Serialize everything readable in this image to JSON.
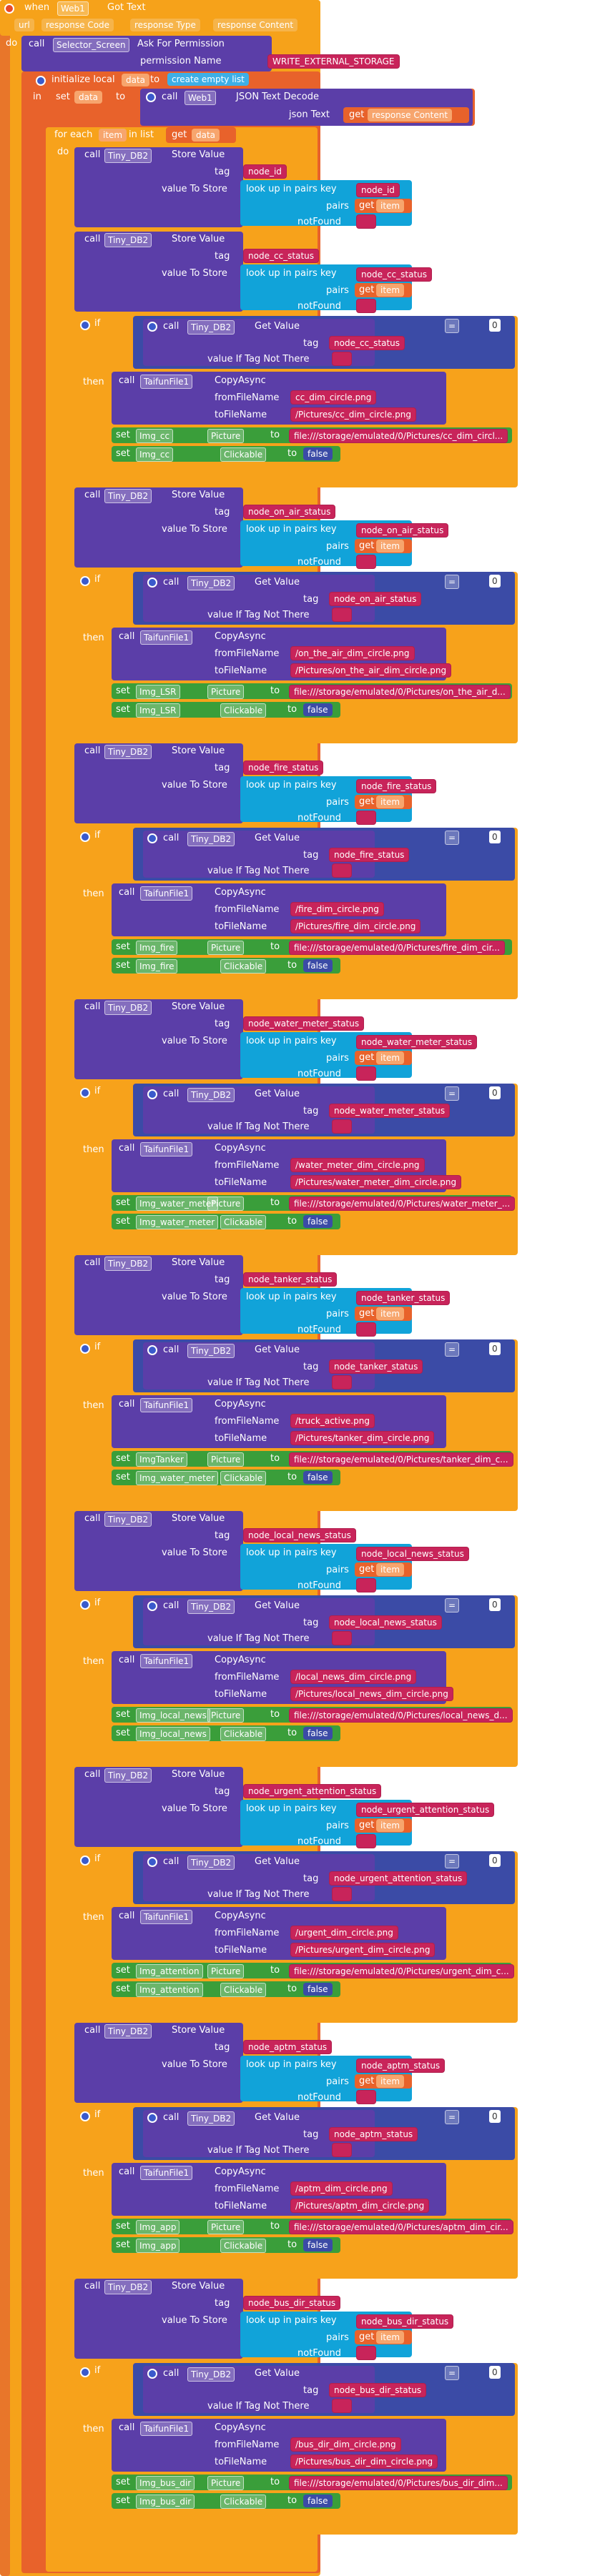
{
  "event": {
    "when": "when",
    "component": "Web1",
    "event": "Got Text",
    "params": [
      "url",
      "response Code",
      "response Type",
      "response Content"
    ]
  },
  "permission": {
    "call": "call",
    "component": "Selector_Screen",
    "method": "Ask For Permission",
    "arg_label": "permission Name",
    "value": "WRITE_EXTERNAL_STORAGE"
  },
  "init": {
    "label": "initialize local",
    "var": "data",
    "to": "to",
    "create": "create empty list"
  },
  "in_label": "in",
  "set_data": {
    "set": "set",
    "var": "data",
    "to": "to",
    "call": "call",
    "component": "Web1",
    "method": "JSON Text Decode",
    "arg": "json Text",
    "get": "get",
    "value": "response Content"
  },
  "foreach": {
    "label": "for each",
    "var": "item",
    "inlist": "in list",
    "get": "get",
    "list": "data"
  },
  "do_label": "do",
  "then_label": "then",
  "if_label": "if",
  "common": {
    "call": "call",
    "store": "Store Value",
    "getvalue": "Get Value",
    "tag": "tag",
    "vts": "value To Store",
    "lookup": "look up in pairs  key",
    "pairs": "pairs",
    "notfound": "notFound",
    "get": "get",
    "item": "item",
    "empty": "",
    "vitnt": "value If Tag Not There",
    "copyasync": "CopyAsync",
    "from": "fromFileName",
    "to_file": "toFileName",
    "set": "set",
    "to": "to",
    "picture": "Picture",
    "clickable": "Clickable",
    "false": "false",
    "eq": "=",
    "zero": "0",
    "tinydb": "Tiny_DB2",
    "taifun": "TaifunFile1"
  },
  "groups": [
    {
      "key": "node_id",
      "has_if": false
    },
    {
      "key": "node_cc_status",
      "from": "cc_dim_circle.png",
      "to": "/Pictures/cc_dim_circle.png",
      "img": "Img_cc",
      "pic": "file:///storage/emulated/0/Pictures/cc_dim_circl..."
    },
    {
      "key": "node_on_air_status",
      "from": "/on_the_air_dim_circle.png",
      "to": "/Pictures/on_the_air_dim_circle.png",
      "img": "Img_LSR",
      "pic": "file:///storage/emulated/0/Pictures/on_the_air_d..."
    },
    {
      "key": "node_fire_status",
      "from": "/fire_dim_circle.png",
      "to": "/Pictures/fire_dim_circle.png",
      "img": "Img_fire",
      "pic": "file:///storage/emulated/0/Pictures/fire_dim_cir..."
    },
    {
      "key": "node_water_meter_status",
      "from": "/water_meter_dim_circle.png",
      "to": "/Pictures/water_meter_dim_circle.png",
      "img": "Img_water_meter",
      "pic": "file:///storage/emulated/0/Pictures/water_meter_..."
    },
    {
      "key": "node_tanker_status",
      "from": "/truck_active.png",
      "to": "/Pictures/tanker_dim_circle.png",
      "img": "ImgTanker",
      "img2": "Img_water_meter",
      "pic": "file:///storage/emulated/0/Pictures/tanker_dim_c..."
    },
    {
      "key": "node_local_news_status",
      "from": "/local_news_dim_circle.png",
      "to": "/Pictures/local_news_dim_circle.png",
      "img": "Img_local_news",
      "pic": "file:///storage/emulated/0/Pictures/local_news_d..."
    },
    {
      "key": "node_urgent_attention_status",
      "from": "/urgent_dim_circle.png",
      "to": "/Pictures/urgent_dim_circle.png",
      "img": "Img_attention",
      "pic": "file:///storage/emulated/0/Pictures/urgent_dim_c..."
    },
    {
      "key": "node_aptm_status",
      "from": "/aptm_dim_circle.png",
      "to": "/Pictures/aptm_dim_circle.png",
      "img": "Img_app",
      "pic": "file:///storage/emulated/0/Pictures/aptm_dim_cir..."
    },
    {
      "key": "node_bus_dir_status",
      "from": "/bus_dir_dim_circle.png",
      "to": "/Pictures/bus_dir_dim_circle.png",
      "img": "Img_bus_dir",
      "pic": "file:///storage/emulated/0/Pictures/bus_dir_dim..."
    }
  ],
  "colors": {
    "event": "#f6a21a",
    "procedure": "#5b3ea8",
    "lookup": "#11a3d9",
    "text": "#c8245a",
    "variable": "#e8622b",
    "control": "#f7a21b",
    "logic": "#3b4ba6",
    "set": "#3a9e3a",
    "list": "#3dafe6"
  }
}
